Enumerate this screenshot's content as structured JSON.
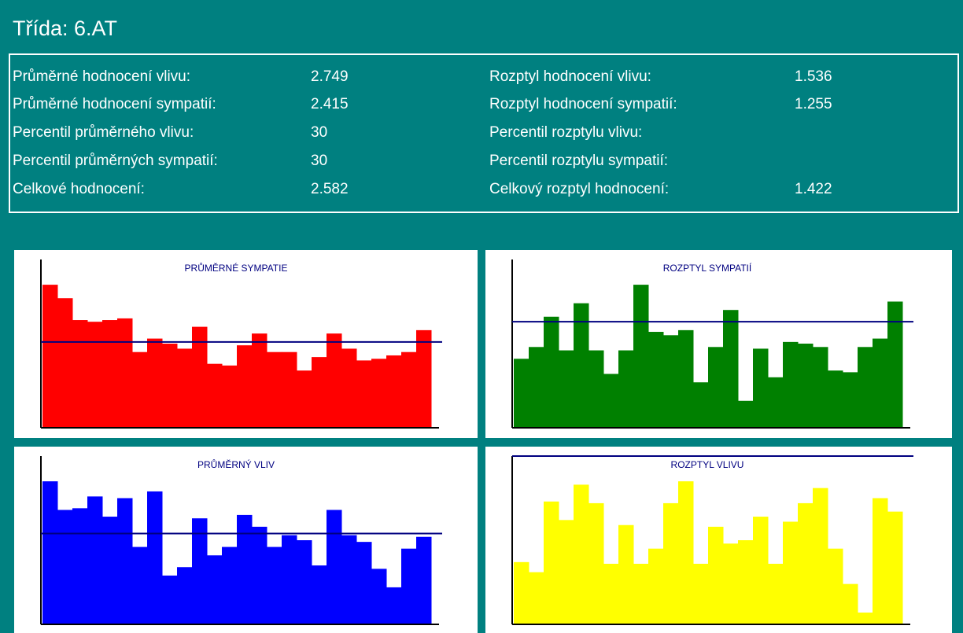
{
  "title": "Třída: 6.AT",
  "stats": {
    "left": [
      {
        "label": "Průměrné hodnocení vlivu:",
        "value": 2.749
      },
      {
        "label": "Průměrné hodnocení sympatií:",
        "value": 2.415
      },
      {
        "label": "Percentil průměrného vlivu:",
        "value": 30
      },
      {
        "label": "Percentil průměrných sympatií:",
        "value": 30
      },
      {
        "label": "Celkové hodnocení:",
        "value": 2.582
      }
    ],
    "right": [
      {
        "label": "Rozptyl hodnocení vlivu:",
        "value": 1.536
      },
      {
        "label": "Rozptyl hodnocení sympatií:",
        "value": 1.255
      },
      {
        "label": "Percentil rozptylu vlivu:"
      },
      {
        "label": "Percentil rozptylu sympatií:"
      },
      {
        "label": "Celkový rozptyl hodnocení:",
        "value": 1.422
      }
    ]
  },
  "chart_data": [
    {
      "type": "bar",
      "title": "PRŮMĚRNÉ SYMPATIE",
      "color": "#ff0000",
      "ylim": [
        0,
        100
      ],
      "reference": 51,
      "values": [
        85,
        77,
        64,
        63,
        64,
        65,
        45,
        53,
        50,
        47,
        60,
        38,
        37,
        49,
        56,
        45,
        45,
        34,
        42,
        56,
        47,
        40,
        41,
        43,
        45,
        58
      ]
    },
    {
      "type": "bar",
      "title": "ROZPTYL SYMPATIÍ",
      "color": "#008000",
      "ylim": [
        0,
        100
      ],
      "reference": 63,
      "values": [
        41,
        48,
        66,
        46,
        74,
        46,
        32,
        46,
        85,
        57,
        55,
        58,
        27,
        48,
        70,
        16,
        47,
        30,
        51,
        50,
        48,
        34,
        33,
        48,
        53,
        75
      ]
    },
    {
      "type": "bar",
      "title": "PRŮMĚRNÝ VLIV",
      "color": "#0000ff",
      "ylim": [
        0,
        100
      ],
      "reference": 54,
      "values": [
        85,
        68,
        69,
        76,
        64,
        75,
        46,
        79,
        29,
        34,
        63,
        41,
        46,
        65,
        58,
        46,
        53,
        50,
        35,
        68,
        53,
        49,
        33,
        22,
        45,
        52
      ]
    },
    {
      "type": "bar",
      "title": "ROZPTYL VLIVU",
      "color": "#ffff00",
      "ylim": [
        0,
        100
      ],
      "reference": 100,
      "values": [
        37,
        31,
        73,
        62,
        83,
        72,
        36,
        59,
        36,
        45,
        72,
        85,
        36,
        58,
        48,
        50,
        64,
        36,
        61,
        72,
        81,
        45,
        24,
        7,
        75,
        67
      ]
    }
  ]
}
